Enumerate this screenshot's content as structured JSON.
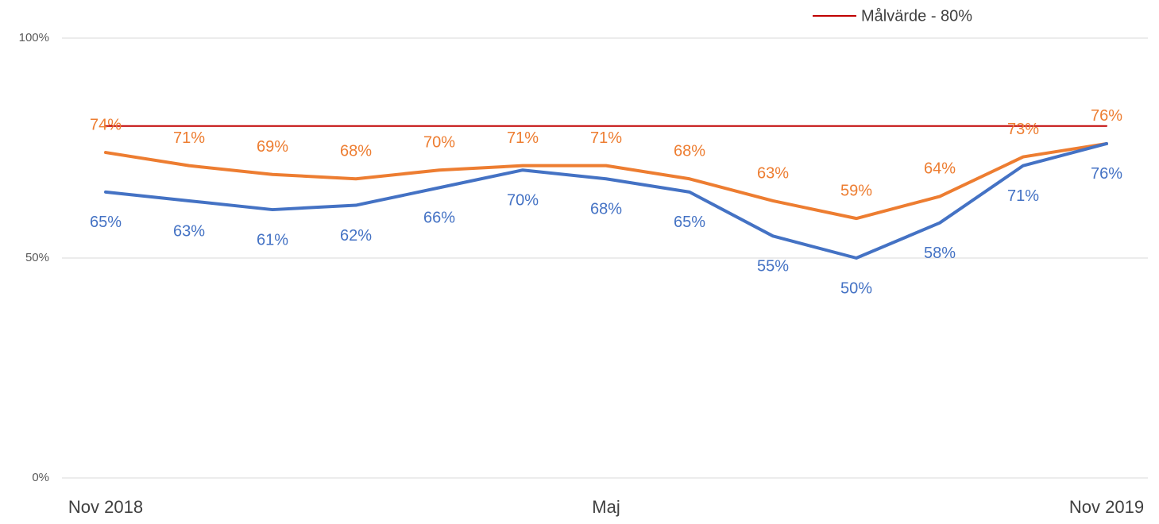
{
  "chart_data": {
    "type": "line",
    "categories": [
      "Nov 2018",
      null,
      null,
      null,
      null,
      null,
      "Maj",
      null,
      null,
      null,
      null,
      null,
      "Nov 2019"
    ],
    "series": [
      {
        "color": "#ed7d31",
        "values": [
          74,
          71,
          69,
          68,
          70,
          71,
          71,
          68,
          63,
          59,
          64,
          73,
          76
        ],
        "value_labels": [
          "74%",
          "71%",
          "69%",
          "68%",
          "70%",
          "71%",
          "71%",
          "68%",
          "63%",
          "59%",
          "64%",
          "73%",
          "76%"
        ]
      },
      {
        "color": "#4472c4",
        "values": [
          65,
          63,
          61,
          62,
          66,
          70,
          68,
          65,
          55,
          50,
          58,
          71,
          76
        ],
        "value_labels": [
          "65%",
          "63%",
          "61%",
          "62%",
          "66%",
          "70%",
          "68%",
          "65%",
          "55%",
          "50%",
          "58%",
          "71%",
          "76%"
        ]
      },
      {
        "name": "Målvärde - 80%",
        "color": "#c00000",
        "values": [
          80,
          80,
          80,
          80,
          80,
          80,
          80,
          80,
          80,
          80,
          80,
          80,
          80
        ]
      }
    ],
    "ylim": [
      0,
      100
    ],
    "yticks": [
      {
        "value": 0,
        "label": "0%"
      },
      {
        "value": 50,
        "label": "50%"
      },
      {
        "value": 100,
        "label": "100%"
      }
    ],
    "grid": true,
    "legend": "upper right"
  }
}
